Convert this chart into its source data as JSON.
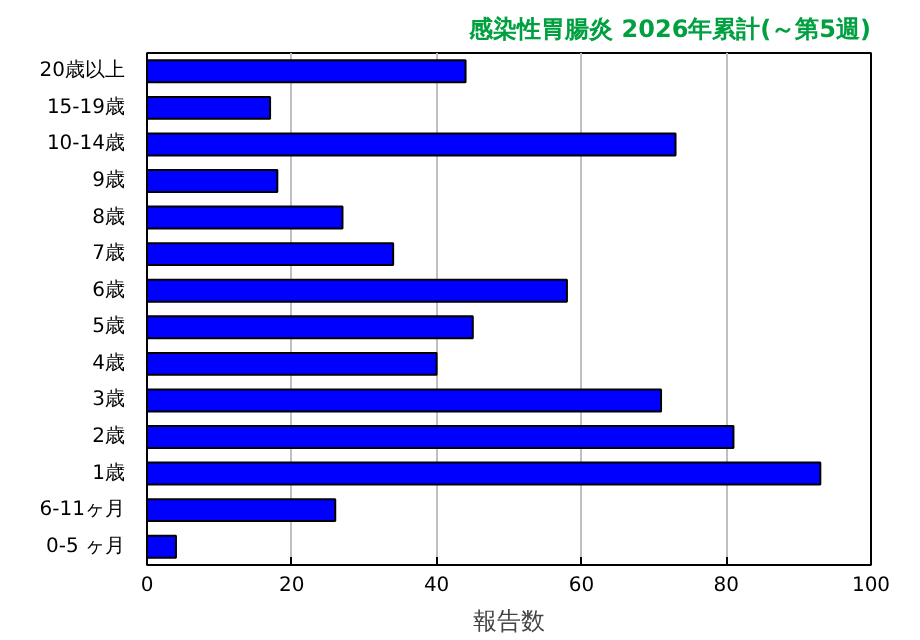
{
  "chart_data": {
    "type": "bar",
    "orientation": "horizontal",
    "title": "感染性胃腸炎 2026年累計(～第5週)",
    "xlabel": "報告数",
    "categories": [
      "20歳以上",
      "15-19歳",
      "10-14歳",
      "9歳",
      "8歳",
      "7歳",
      "6歳",
      "5歳",
      "4歳",
      "3歳",
      "2歳",
      "1歳",
      "6-11ヶ月",
      "0-5 ヶ月"
    ],
    "values": [
      44,
      17,
      73,
      18,
      27,
      34,
      58,
      45,
      40,
      71,
      81,
      93,
      26,
      4
    ],
    "color": "#0000ff",
    "xlim": [
      0,
      100
    ],
    "xticks": [
      0,
      20,
      40,
      60,
      80,
      100
    ],
    "grid": "x"
  }
}
